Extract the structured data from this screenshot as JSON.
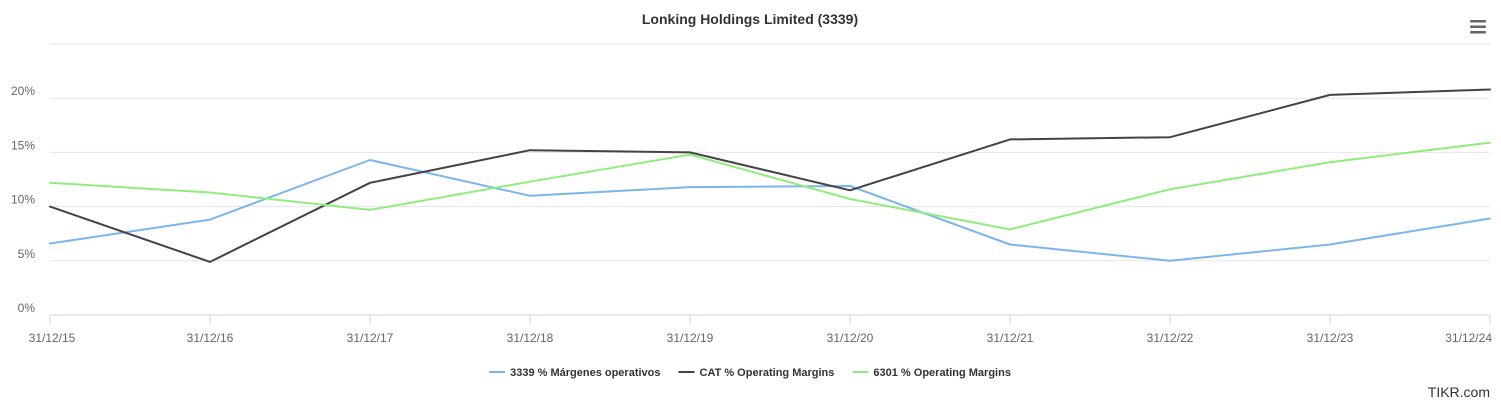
{
  "chart_data": {
    "type": "line",
    "title": "Lonking Holdings Limited (3339)",
    "xlabel": "",
    "ylabel": "",
    "categories": [
      "31/12/15",
      "31/12/16",
      "31/12/17",
      "31/12/18",
      "31/12/19",
      "31/12/20",
      "31/12/21",
      "31/12/22",
      "31/12/23",
      "31/12/24"
    ],
    "y_ticks": [
      0,
      5,
      10,
      15,
      20
    ],
    "y_tick_labels": [
      "0%",
      "5%",
      "10%",
      "15%",
      "20%"
    ],
    "ylim": [
      0,
      25
    ],
    "grid": true,
    "legend_position": "bottom-center",
    "series": [
      {
        "name": "3339 % Márgenes operativos",
        "color": "#7cb5ec",
        "values": [
          6.6,
          8.8,
          14.3,
          11.0,
          11.8,
          11.9,
          6.5,
          5.0,
          6.5,
          8.9
        ]
      },
      {
        "name": "CAT % Operating Margins",
        "color": "#434348",
        "values": [
          10.0,
          4.9,
          12.2,
          15.2,
          15.0,
          11.5,
          16.2,
          16.4,
          20.3,
          20.8
        ]
      },
      {
        "name": "6301 % Operating Margins",
        "color": "#90ed7d",
        "values": [
          12.2,
          11.3,
          9.7,
          12.3,
          14.8,
          10.7,
          7.9,
          11.6,
          14.1,
          15.9
        ]
      }
    ]
  },
  "menu": {
    "icon": "hamburger-menu-icon"
  },
  "credit": {
    "text": "TIKR.com"
  }
}
